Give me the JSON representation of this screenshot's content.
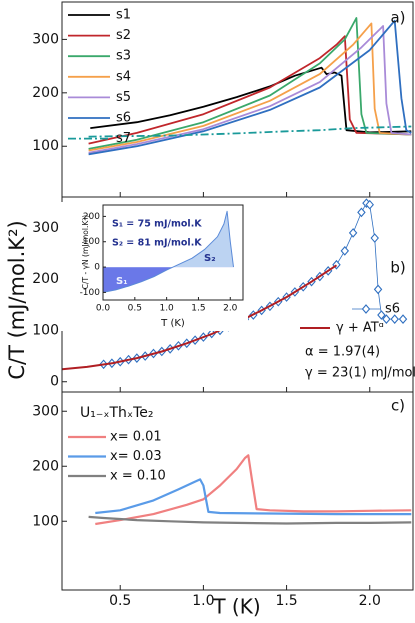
{
  "chart_data": [
    {
      "type": "line",
      "label": "a)",
      "xlim": [
        0.15,
        2.26
      ],
      "ylim": [
        5,
        370
      ],
      "xticks": [
        0.5,
        {
          "value": 1,
          "label": "1.0"
        },
        1.5,
        {
          "value": 2,
          "label": "2.0"
        }
      ],
      "yticks": [
        100,
        200,
        300
      ],
      "line_width": 1.8,
      "series": [
        {
          "name": "s1",
          "color": "#000000",
          "x": [
            0.32,
            0.6,
            0.8,
            1.0,
            1.2,
            1.4,
            1.55,
            1.71,
            1.74,
            1.79,
            1.83,
            1.86,
            2.0,
            2.25
          ],
          "values": [
            134,
            145,
            158,
            174,
            192,
            212,
            232,
            247,
            235,
            238,
            232,
            130,
            126,
            128
          ]
        },
        {
          "name": "s2",
          "color": "#c0262b",
          "x": [
            0.31,
            0.6,
            1.0,
            1.4,
            1.7,
            1.8,
            1.85,
            1.88,
            1.92,
            2.25
          ],
          "values": [
            105,
            125,
            160,
            210,
            265,
            290,
            306,
            150,
            125,
            122
          ]
        },
        {
          "name": "s3",
          "color": "#3aa86b",
          "x": [
            0.31,
            0.6,
            1.0,
            1.4,
            1.7,
            1.85,
            1.92,
            1.95,
            1.98,
            2.25
          ],
          "values": [
            95,
            112,
            145,
            195,
            255,
            300,
            340,
            160,
            125,
            122
          ]
        },
        {
          "name": "s4",
          "color": "#f5a04a",
          "x": [
            0.31,
            0.6,
            1.0,
            1.4,
            1.7,
            1.9,
            2.01,
            2.03,
            2.06,
            2.25
          ],
          "values": [
            92,
            108,
            138,
            185,
            235,
            290,
            330,
            170,
            125,
            122
          ]
        },
        {
          "name": "s5",
          "color": "#a98bd8",
          "x": [
            0.31,
            0.6,
            1.0,
            1.4,
            1.7,
            1.95,
            2.08,
            2.1,
            2.13,
            2.25
          ],
          "values": [
            88,
            104,
            132,
            175,
            220,
            285,
            325,
            180,
            125,
            122
          ]
        },
        {
          "name": "s6",
          "color": "#2f6fc0",
          "x": [
            0.31,
            0.6,
            1.0,
            1.4,
            1.7,
            2.0,
            2.15,
            2.19,
            2.22,
            2.25
          ],
          "values": [
            85,
            100,
            128,
            168,
            210,
            280,
            335,
            190,
            130,
            125
          ]
        },
        {
          "name": "s7",
          "color": "#1a9a9a",
          "dash": "dashdot",
          "x": [
            0.31,
            0.8,
            1.2,
            1.5,
            1.7,
            1.9,
            2.25
          ],
          "values": [
            118,
            120,
            124,
            128,
            130,
            134,
            137
          ]
        }
      ]
    },
    {
      "type": "line",
      "label": "b)",
      "ylabel": "C/T (mJ/mol.K²)",
      "xlim": [
        0.15,
        2.26
      ],
      "ylim": [
        -20,
        360
      ],
      "xticks": [
        0.5,
        {
          "value": 1,
          "label": "1.0"
        },
        1.5,
        {
          "value": 2,
          "label": "2.0"
        }
      ],
      "yticks": [
        0,
        100,
        200,
        300
      ],
      "line_width": 2,
      "series": [
        {
          "name": "s6",
          "color": "#2f6fc0",
          "marker": "diamond",
          "x": [
            0.4,
            0.45,
            0.5,
            0.55,
            0.6,
            0.65,
            0.7,
            0.75,
            0.8,
            0.85,
            0.9,
            0.95,
            1.0,
            1.05,
            1.1,
            1.15,
            1.2,
            1.25,
            1.3,
            1.35,
            1.4,
            1.45,
            1.5,
            1.55,
            1.6,
            1.65,
            1.7,
            1.75,
            1.8,
            1.85,
            1.9,
            1.95,
            1.98,
            2.0,
            2.03,
            2.05,
            2.07,
            2.1,
            2.15,
            2.2
          ],
          "values": [
            34,
            36,
            39,
            43,
            46,
            50,
            55,
            59,
            64,
            70,
            75,
            81,
            87,
            94,
            100,
            107,
            115,
            122,
            130,
            139,
            147,
            156,
            165,
            175,
            185,
            195,
            205,
            216,
            228,
            255,
            290,
            330,
            348,
            345,
            280,
            180,
            130,
            122,
            122,
            122
          ]
        },
        {
          "name": "γ + ATᵅ",
          "color": "#b01e23",
          "x": [
            0.15,
            0.3,
            0.45,
            0.6,
            0.75,
            0.9,
            1.05,
            1.2,
            1.35,
            1.5,
            1.65,
            1.8
          ],
          "values": [
            24.5,
            29,
            36,
            46,
            59,
            75,
            93,
            115,
            139,
            165,
            195,
            227
          ]
        }
      ],
      "annotations": [
        "α = 1.97(4)",
        "γ = 23(1) mJ/mol.K²"
      ]
    },
    {
      "type": "area",
      "inset": true,
      "xlabel": "T (K)",
      "ylabel": "C/T - γN (mJ/mol.K²)",
      "xlim": [
        0,
        2.2
      ],
      "ylim": [
        -130,
        245
      ],
      "xticks": [
        {
          "value": 0,
          "label": "0.0"
        },
        0.5,
        {
          "value": 1,
          "label": "1.0"
        },
        1.5,
        {
          "value": 2,
          "label": "2.0"
        }
      ],
      "yticks": [
        -100,
        0,
        100,
        200
      ],
      "line_width": 1,
      "series": [
        {
          "color": "#5a8ad8",
          "fill_above": "#bcd3f2",
          "fill_below": "#6a78e8",
          "x": [
            0,
            0.2,
            0.4,
            0.6,
            0.8,
            1.0,
            1.1,
            1.4,
            1.6,
            1.8,
            1.9,
            1.95,
            2.0,
            2.05
          ],
          "values": [
            -100,
            -90,
            -75,
            -58,
            -38,
            -12,
            0,
            35,
            70,
            120,
            170,
            220,
            100,
            0
          ]
        }
      ],
      "annotations": [
        "S₁ = 75 mJ/mol.K",
        "S₂ = 81 mJ/mol.K",
        "S₁",
        "S₂"
      ]
    },
    {
      "type": "line",
      "label": "c)",
      "xlabel": "T (K)",
      "legend_title": "U₁₋ₓThₓTe₂",
      "xlim": [
        0.15,
        2.26
      ],
      "ylim": [
        -25,
        335
      ],
      "xticks": [
        0.5,
        {
          "value": 1,
          "label": "1.0"
        },
        1.5,
        {
          "value": 2,
          "label": "2.0"
        }
      ],
      "yticks": [
        100,
        200,
        300
      ],
      "line_width": 2.2,
      "series": [
        {
          "name": "x=  0.01",
          "color": "#f08080",
          "x": [
            0.35,
            0.5,
            0.7,
            0.9,
            1.0,
            1.1,
            1.2,
            1.25,
            1.27,
            1.29,
            1.32,
            1.4,
            1.6,
            1.8,
            2.0,
            2.25
          ],
          "values": [
            95,
            102,
            113,
            130,
            140,
            165,
            195,
            215,
            220,
            180,
            122,
            120,
            118,
            118,
            119,
            120
          ]
        },
        {
          "name": "x=  0.03",
          "color": "#5a9be8",
          "x": [
            0.35,
            0.5,
            0.7,
            0.85,
            0.95,
            0.98,
            1.0,
            1.03,
            1.1,
            1.4,
            1.8,
            2.25
          ],
          "values": [
            115,
            120,
            138,
            158,
            172,
            176,
            165,
            117,
            115,
            114,
            113,
            113
          ]
        },
        {
          "name": "x = 0.10",
          "color": "#808080",
          "x": [
            0.31,
            0.4,
            0.6,
            0.8,
            1.0,
            1.2,
            1.5,
            1.8,
            2.0,
            2.25
          ],
          "values": [
            108,
            106,
            102,
            100,
            98,
            97,
            96,
            97,
            97,
            98
          ]
        }
      ]
    }
  ]
}
